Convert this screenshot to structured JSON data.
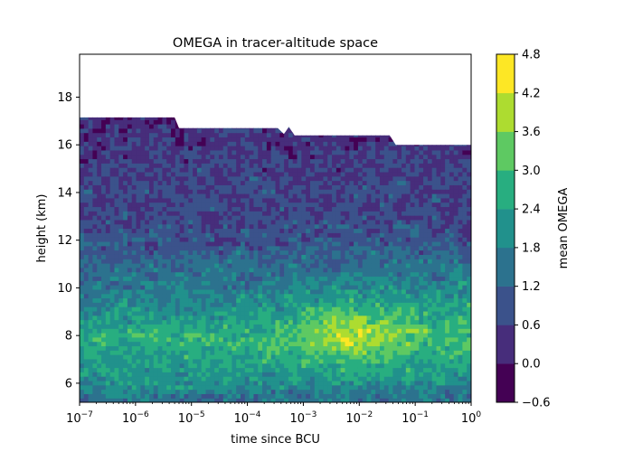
{
  "chart_data": {
    "type": "heatmap",
    "subtype": "filled-contour",
    "title": "OMEGA in tracer-altitude space",
    "xlabel": "time since BCU",
    "ylabel": "height (km)",
    "xscale": "log",
    "x_range": [
      1e-07,
      1
    ],
    "x_ticks": [
      {
        "base": "10",
        "exp": "−7"
      },
      {
        "base": "10",
        "exp": "−6"
      },
      {
        "base": "10",
        "exp": "−5"
      },
      {
        "base": "10",
        "exp": "−4"
      },
      {
        "base": "10",
        "exp": "−3"
      },
      {
        "base": "10",
        "exp": "−2"
      },
      {
        "base": "10",
        "exp": "−1"
      },
      {
        "base": "10",
        "exp": "0"
      }
    ],
    "y_range": [
      5.2,
      19.8
    ],
    "y_ticks": [
      "6",
      "8",
      "10",
      "12",
      "14",
      "16",
      "18"
    ],
    "colorbar": {
      "label": "mean OMEGA",
      "levels": [
        -0.6,
        0.0,
        0.6,
        1.2,
        1.8,
        2.4,
        3.0,
        3.6,
        4.2,
        4.8
      ],
      "tick_labels": [
        "−0.6",
        "0.0",
        "0.6",
        "1.2",
        "1.8",
        "2.4",
        "3.0",
        "3.6",
        "4.2",
        "4.8"
      ],
      "colors": [
        "#440154",
        "#472d7b",
        "#3b528b",
        "#2c728e",
        "#21918c",
        "#28ae80",
        "#5ec962",
        "#addc30",
        "#fde725"
      ]
    },
    "data_top_boundary_km": [
      {
        "x": 1e-07,
        "y": 17.15
      },
      {
        "x": 5e-06,
        "y": 17.15
      },
      {
        "x": 6e-06,
        "y": 16.7
      },
      {
        "x": 0.00035,
        "y": 16.7
      },
      {
        "x": 0.00045,
        "y": 16.45
      },
      {
        "x": 0.00055,
        "y": 16.75
      },
      {
        "x": 0.0007,
        "y": 16.4
      },
      {
        "x": 0.035,
        "y": 16.4
      },
      {
        "x": 0.045,
        "y": 16.0
      },
      {
        "x": 1,
        "y": 16.0
      }
    ],
    "value_profile": [
      {
        "height": 5.4,
        "omega": 1.5
      },
      {
        "height": 6.0,
        "omega": 2.0
      },
      {
        "height": 7.0,
        "omega": 2.4
      },
      {
        "height": 8.0,
        "omega": 2.6
      },
      {
        "height": 9.0,
        "omega": 2.0
      },
      {
        "height": 10.0,
        "omega": 1.6
      },
      {
        "height": 11.0,
        "omega": 1.3
      },
      {
        "height": 12.0,
        "omega": 0.95
      },
      {
        "height": 13.0,
        "omega": 0.65
      },
      {
        "height": 14.0,
        "omega": 0.7
      },
      {
        "height": 15.0,
        "omega": 0.6
      },
      {
        "height": 16.0,
        "omega": 0.45
      },
      {
        "height": 17.2,
        "omega": 0.3
      }
    ],
    "hotspot": {
      "x": 0.008,
      "height": 8.0,
      "peak_omega": 4.0
    }
  }
}
